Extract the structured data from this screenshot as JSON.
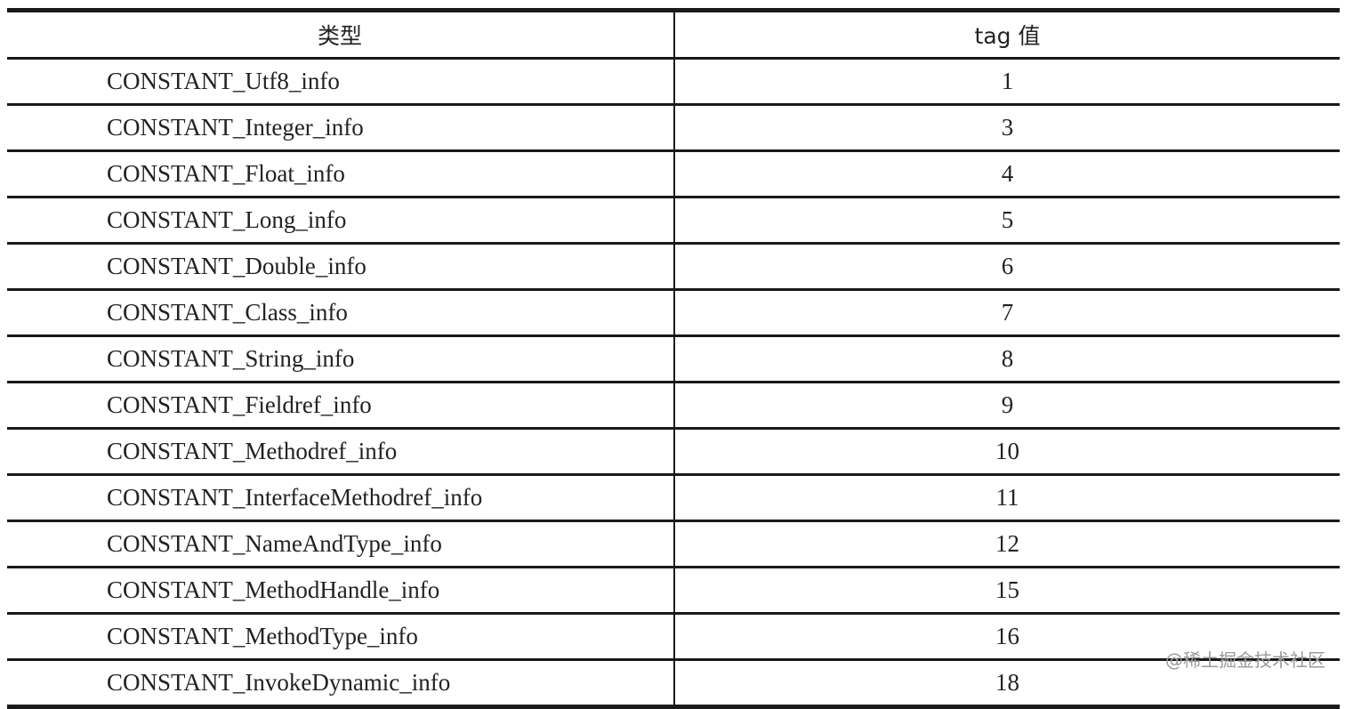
{
  "table": {
    "headers": [
      "类型",
      "tag 值"
    ],
    "rows": [
      {
        "type": "CONSTANT_Utf8_info",
        "tag": "1"
      },
      {
        "type": "CONSTANT_Integer_info",
        "tag": "3"
      },
      {
        "type": "CONSTANT_Float_info",
        "tag": "4"
      },
      {
        "type": "CONSTANT_Long_info",
        "tag": "5"
      },
      {
        "type": "CONSTANT_Double_info",
        "tag": "6"
      },
      {
        "type": "CONSTANT_Class_info",
        "tag": "7"
      },
      {
        "type": "CONSTANT_String_info",
        "tag": "8"
      },
      {
        "type": "CONSTANT_Fieldref_info",
        "tag": "9"
      },
      {
        "type": "CONSTANT_Methodref_info",
        "tag": "10"
      },
      {
        "type": "CONSTANT_InterfaceMethodref_info",
        "tag": "11"
      },
      {
        "type": "CONSTANT_NameAndType_info",
        "tag": "12"
      },
      {
        "type": "CONSTANT_MethodHandle_info",
        "tag": "15"
      },
      {
        "type": "CONSTANT_MethodType_info",
        "tag": "16"
      },
      {
        "type": "CONSTANT_InvokeDynamic_info",
        "tag": "18"
      }
    ]
  },
  "watermark": "@稀土掘金技术社区"
}
